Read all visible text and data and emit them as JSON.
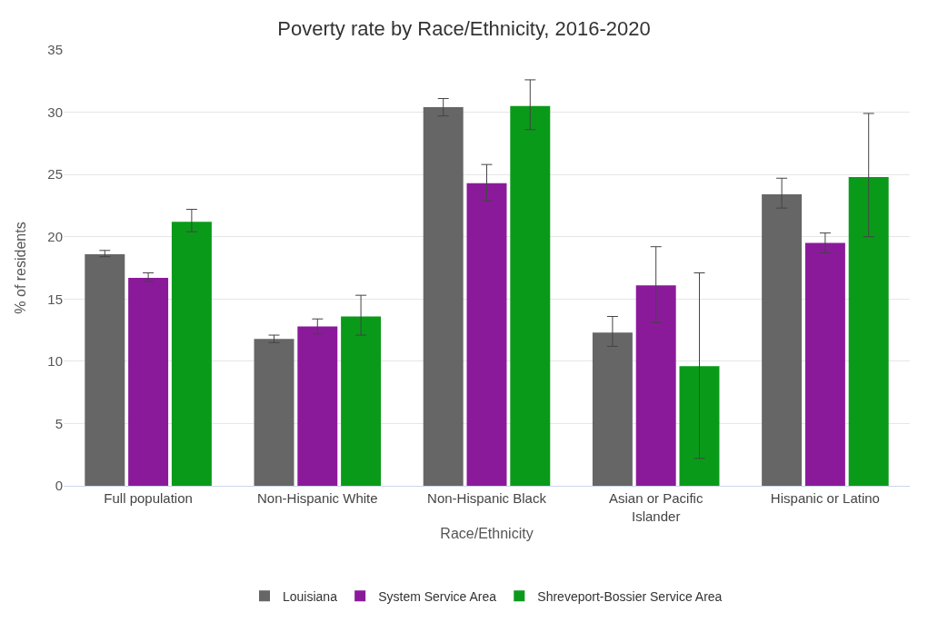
{
  "chart_data": {
    "type": "bar",
    "title": "Poverty rate by Race/Ethnicity, 2016-2020",
    "xlabel": "Race/Ethnicity",
    "ylabel": "% of residents",
    "categories": [
      "Full population",
      "Non-Hispanic White",
      "Non-Hispanic Black",
      "Asian or Pacific Islander",
      "Hispanic or Latino"
    ],
    "series": [
      {
        "name": "Louisiana",
        "color": "#666666",
        "values": [
          18.6,
          11.8,
          30.4,
          12.3,
          23.4
        ],
        "errors": [
          [
            18.4,
            18.9
          ],
          [
            11.5,
            12.1
          ],
          [
            29.7,
            31.1
          ],
          [
            11.2,
            13.6
          ],
          [
            22.3,
            24.7
          ]
        ]
      },
      {
        "name": "System Service Area",
        "color": "#8b1a9b",
        "values": [
          16.7,
          12.8,
          24.3,
          16.1,
          19.5
        ],
        "errors": [
          [
            16.4,
            17.1
          ],
          [
            12.2,
            13.4
          ],
          [
            22.9,
            25.8
          ],
          [
            13.1,
            19.2
          ],
          [
            18.7,
            20.3
          ]
        ]
      },
      {
        "name": "Shreveport-Bossier Service Area",
        "color": "#0a9a1a",
        "values": [
          21.2,
          13.6,
          30.5,
          9.6,
          24.8
        ],
        "errors": [
          [
            20.4,
            22.2
          ],
          [
            12.1,
            15.3
          ],
          [
            28.6,
            32.6
          ],
          [
            2.2,
            17.1
          ],
          [
            20.0,
            29.9
          ]
        ]
      }
    ],
    "ylim": [
      0,
      35
    ],
    "yticks": [
      0,
      5,
      10,
      15,
      20,
      25,
      30,
      35
    ],
    "grid": "y",
    "legend": "bottom"
  }
}
